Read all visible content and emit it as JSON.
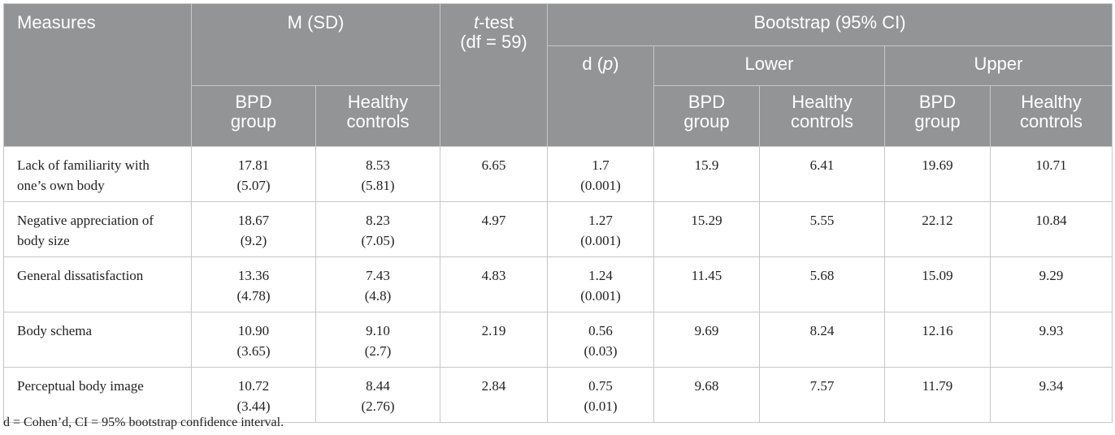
{
  "header": {
    "measures": "Measures",
    "m_sd": "M (SD)",
    "ttest": {
      "t": "t",
      "rest": "-test",
      "df": "(df = 59)"
    },
    "bootstrap": "Bootstrap (95% CI)",
    "d_p": {
      "d": "d (",
      "p": "p",
      "close": ")"
    },
    "lower": "Lower",
    "upper": "Upper",
    "bpd": [
      "BPD",
      "group"
    ],
    "healthy": [
      "Healthy",
      "controls"
    ]
  },
  "rows": [
    {
      "measure": [
        "Lack of familiarity with",
        "one’s own body"
      ],
      "bpd_m": "17.81",
      "bpd_sd": "(5.07)",
      "hc_m": "8.53",
      "hc_sd": "(5.81)",
      "t": "6.65",
      "d": "1.7",
      "p": "(0.001)",
      "lower_bpd": "15.9",
      "lower_hc": "6.41",
      "upper_bpd": "19.69",
      "upper_hc": "10.71"
    },
    {
      "measure": [
        "Negative appreciation of",
        "body size"
      ],
      "bpd_m": "18.67",
      "bpd_sd": "(9.2)",
      "hc_m": "8.23",
      "hc_sd": "(7.05)",
      "t": "4.97",
      "d": "1.27",
      "p": "(0.001)",
      "lower_bpd": "15.29",
      "lower_hc": "5.55",
      "upper_bpd": "22.12",
      "upper_hc": "10.84"
    },
    {
      "measure": [
        "General dissatisfaction",
        ""
      ],
      "bpd_m": "13.36",
      "bpd_sd": "(4.78)",
      "hc_m": "7.43",
      "hc_sd": "(4.8)",
      "t": "4.83",
      "d": "1.24",
      "p": "(0.001)",
      "lower_bpd": "11.45",
      "lower_hc": "5.68",
      "upper_bpd": "15.09",
      "upper_hc": "9.29"
    },
    {
      "measure": [
        "Body schema",
        ""
      ],
      "bpd_m": "10.90",
      "bpd_sd": "(3.65)",
      "hc_m": "9.10",
      "hc_sd": "(2.7)",
      "t": "2.19",
      "d": "0.56",
      "p": "(0.03)",
      "lower_bpd": "9.69",
      "lower_hc": "8.24",
      "upper_bpd": "12.16",
      "upper_hc": "9.93"
    },
    {
      "measure": [
        "Perceptual body image",
        ""
      ],
      "bpd_m": "10.72",
      "bpd_sd": "(3.44)",
      "hc_m": "8.44",
      "hc_sd": "(2.76)",
      "t": "2.84",
      "d": "0.75",
      "p": "(0.01)",
      "lower_bpd": "9.68",
      "lower_hc": "7.57",
      "upper_bpd": "11.79",
      "upper_hc": "9.34"
    }
  ],
  "footnote": "d = Cohen’d, CI = 95% bootstrap confidence interval."
}
